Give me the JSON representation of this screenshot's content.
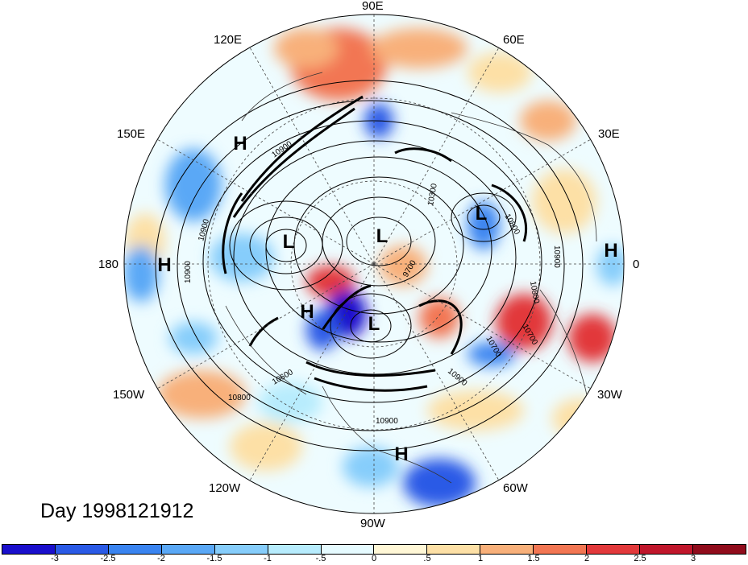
{
  "title": "Day 1998121912",
  "longitude_labels": {
    "n90e": "90E",
    "n120e": "120E",
    "n60e": "60E",
    "n150e": "150E",
    "n30e": "30E",
    "n180": "180",
    "n0": "0",
    "n150w": "150W",
    "n30w": "30W",
    "n120w": "120W",
    "n60w": "60W",
    "n90w": "90W"
  },
  "pressure_systems": [
    {
      "label": "H"
    },
    {
      "label": "H"
    },
    {
      "label": "H"
    },
    {
      "label": "H"
    },
    {
      "label": "L"
    },
    {
      "label": "L"
    },
    {
      "label": "L"
    },
    {
      "label": "L"
    }
  ],
  "contour_labels": {
    "c1": "10900",
    "c2": "10900",
    "c3": "10600",
    "c4": "10800",
    "c5": "10900",
    "c6": "10300",
    "c7": "9700",
    "c8": "10700",
    "c9": "10700",
    "c10": "10800",
    "c11": "10900",
    "c12": "10800",
    "c13": "10900",
    "c14": "10900"
  },
  "colorbar": {
    "ticks": [
      "-3",
      "-2.5",
      "-2",
      "-1.5",
      "-1",
      "-.5",
      "0",
      ".5",
      "1",
      "1.5",
      "2",
      "2.5",
      "3"
    ],
    "colors": [
      "#1a0fcc",
      "#2a5ae6",
      "#3a84f0",
      "#5aa8f6",
      "#86cdfb",
      "#b7ecfd",
      "#e6fbff",
      "#fff7d6",
      "#fde0a6",
      "#f8b07a",
      "#f27653",
      "#e2393b",
      "#c0162b",
      "#900c1c"
    ]
  }
}
